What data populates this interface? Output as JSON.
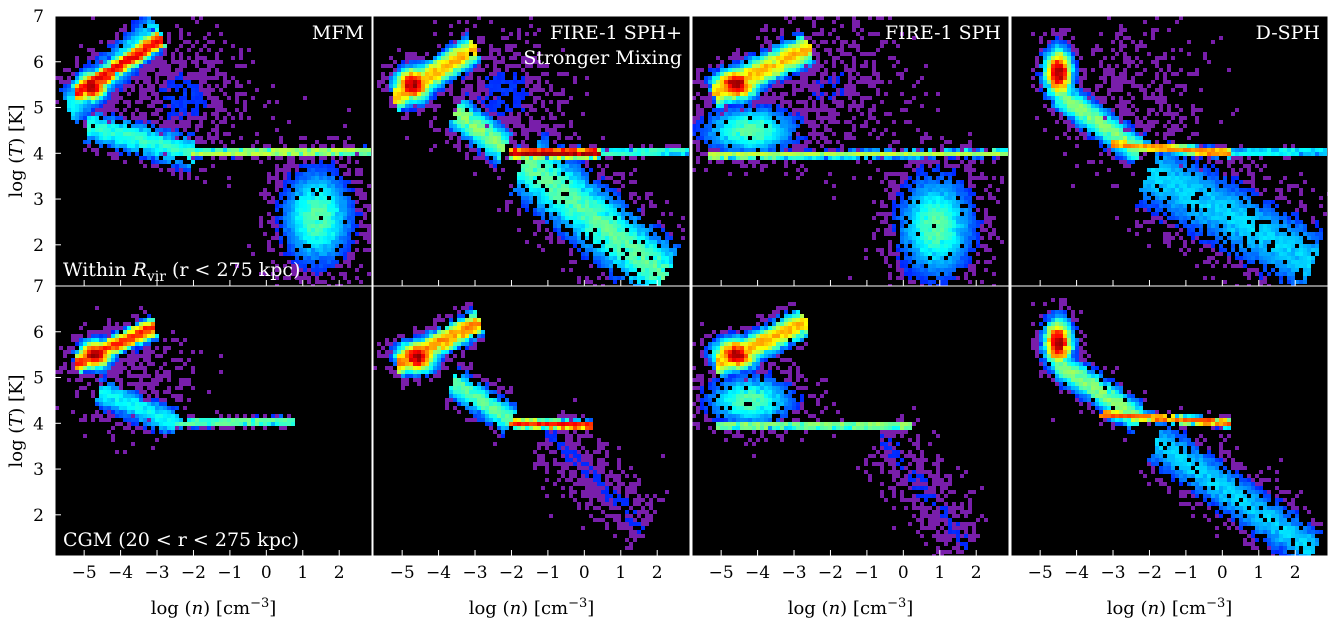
{
  "chart_data": {
    "type": "heatmap",
    "colormap": "jet",
    "background": "#000000",
    "panel_titles": [
      [
        "MFM"
      ],
      [
        "FIRE-1 SPH+",
        "Stronger Mixing"
      ],
      [
        "FIRE-1 SPH"
      ],
      [
        "D-SPH"
      ]
    ],
    "row_annotations": [
      "Within R_vir (r < 275 kpc)",
      "CGM (20 < r < 275 kpc)"
    ],
    "xlabel": "log (n) [cm^-3]",
    "ylabel": "log (T) [K]",
    "xlim": [
      -5.8,
      2.9
    ],
    "ylim": [
      1.1,
      7.0
    ],
    "xticks": [
      "−5",
      "−4",
      "−3",
      "−2",
      "−1",
      "0",
      "1",
      "2"
    ],
    "xtick_values": [
      -5,
      -4,
      -3,
      -2,
      -1,
      0,
      1,
      2
    ],
    "yticks_top": [
      "7",
      "6",
      "5",
      "4",
      "3",
      "2"
    ],
    "yticks_bottom": [
      "7",
      "6",
      "5",
      "4",
      "3",
      "2"
    ],
    "ytick_values": [
      7,
      6,
      5,
      4,
      3,
      2
    ],
    "panels": [
      {
        "row": 0,
        "col": 0,
        "components": [
          {
            "shape": "blob",
            "x": -4.8,
            "y": 5.45,
            "sx": 0.28,
            "sy": 0.2,
            "peak": 1.0,
            "n": 650
          },
          {
            "shape": "ridge",
            "x1": -5.2,
            "y1": 5.3,
            "x2": -2.9,
            "y2": 6.5,
            "width": 0.14,
            "peak": 0.9,
            "n": 900
          },
          {
            "shape": "ridge",
            "x1": -5.4,
            "y1": 5.0,
            "x2": -3.0,
            "y2": 6.7,
            "width": 0.3,
            "peak": 0.35,
            "n": 900
          },
          {
            "shape": "ridge",
            "x1": -4.9,
            "y1": 4.6,
            "x2": -2.0,
            "y2": 4.0,
            "width": 0.25,
            "peak": 0.4,
            "n": 500
          },
          {
            "shape": "ridge",
            "x1": -2.0,
            "y1": 4.0,
            "x2": 2.8,
            "y2": 4.05,
            "width": 0.04,
            "peak": 0.55,
            "n": 700
          },
          {
            "shape": "blob",
            "x": 1.4,
            "y": 2.6,
            "sx": 0.65,
            "sy": 0.7,
            "peak": 0.45,
            "n": 1400
          },
          {
            "shape": "blob",
            "x": -2.3,
            "y": 5.2,
            "sx": 0.9,
            "sy": 0.7,
            "peak": 0.12,
            "n": 600
          }
        ]
      },
      {
        "row": 0,
        "col": 1,
        "components": [
          {
            "shape": "blob",
            "x": -4.7,
            "y": 5.5,
            "sx": 0.32,
            "sy": 0.24,
            "peak": 1.0,
            "n": 700
          },
          {
            "shape": "ridge",
            "x1": -5.2,
            "y1": 5.2,
            "x2": -3.0,
            "y2": 6.3,
            "width": 0.2,
            "peak": 0.7,
            "n": 900
          },
          {
            "shape": "ridge",
            "x1": -3.5,
            "y1": 4.9,
            "x2": -2.2,
            "y2": 4.1,
            "width": 0.25,
            "peak": 0.5,
            "n": 500
          },
          {
            "shape": "ridge",
            "x1": -2.0,
            "y1": 4.0,
            "x2": 0.4,
            "y2": 4.0,
            "width": 0.06,
            "peak": 1.0,
            "n": 700
          },
          {
            "shape": "ridge",
            "x1": 0.4,
            "y1": 4.0,
            "x2": 2.8,
            "y2": 4.05,
            "width": 0.04,
            "peak": 0.4,
            "n": 400
          },
          {
            "shape": "ridge",
            "x1": -1.6,
            "y1": 3.8,
            "x2": 2.2,
            "y2": 1.3,
            "width": 0.5,
            "peak": 0.45,
            "n": 1600
          },
          {
            "shape": "blob",
            "x": -2.2,
            "y": 5.3,
            "sx": 0.9,
            "sy": 0.7,
            "peak": 0.12,
            "n": 500
          }
        ]
      },
      {
        "row": 0,
        "col": 2,
        "components": [
          {
            "shape": "blob",
            "x": -4.6,
            "y": 5.5,
            "sx": 0.4,
            "sy": 0.22,
            "peak": 1.0,
            "n": 700
          },
          {
            "shape": "ridge",
            "x1": -5.2,
            "y1": 5.3,
            "x2": -2.6,
            "y2": 6.3,
            "width": 0.22,
            "peak": 0.7,
            "n": 900
          },
          {
            "shape": "blob",
            "x": -4.2,
            "y": 4.5,
            "sx": 0.9,
            "sy": 0.35,
            "peak": 0.45,
            "n": 900
          },
          {
            "shape": "ridge",
            "x1": -5.3,
            "y1": 3.95,
            "x2": 2.8,
            "y2": 4.0,
            "width": 0.04,
            "peak": 0.55,
            "n": 900
          },
          {
            "shape": "blob",
            "x": 0.9,
            "y": 2.4,
            "sx": 0.7,
            "sy": 0.75,
            "peak": 0.45,
            "n": 1500
          },
          {
            "shape": "blob",
            "x": -2.0,
            "y": 5.5,
            "sx": 1.0,
            "sy": 0.8,
            "peak": 0.1,
            "n": 500
          }
        ]
      },
      {
        "row": 0,
        "col": 3,
        "components": [
          {
            "shape": "blob",
            "x": -4.5,
            "y": 5.75,
            "sx": 0.25,
            "sy": 0.35,
            "peak": 1.0,
            "n": 700
          },
          {
            "shape": "ridge",
            "x1": -4.5,
            "y1": 5.3,
            "x2": -2.3,
            "y2": 4.05,
            "width": 0.22,
            "peak": 0.5,
            "n": 700
          },
          {
            "shape": "ridge",
            "x1": -3.0,
            "y1": 4.2,
            "x2": 0.2,
            "y2": 4.0,
            "width": 0.05,
            "peak": 0.75,
            "n": 600
          },
          {
            "shape": "ridge",
            "x1": 0.2,
            "y1": 4.0,
            "x2": 2.8,
            "y2": 4.05,
            "width": 0.04,
            "peak": 0.35,
            "n": 300
          },
          {
            "shape": "ridge",
            "x1": -2.0,
            "y1": 3.6,
            "x2": 2.5,
            "y2": 1.6,
            "width": 0.55,
            "peak": 0.3,
            "n": 1500
          },
          {
            "shape": "blob",
            "x": -2.5,
            "y": 5.2,
            "sx": 1.0,
            "sy": 0.8,
            "peak": 0.08,
            "n": 400
          }
        ]
      },
      {
        "row": 1,
        "col": 0,
        "components": [
          {
            "shape": "blob",
            "x": -4.7,
            "y": 5.5,
            "sx": 0.3,
            "sy": 0.2,
            "peak": 1.0,
            "n": 650
          },
          {
            "shape": "ridge",
            "x1": -5.2,
            "y1": 5.3,
            "x2": -3.1,
            "y2": 6.1,
            "width": 0.14,
            "peak": 0.85,
            "n": 800
          },
          {
            "shape": "ridge",
            "x1": -4.6,
            "y1": 4.7,
            "x2": -2.5,
            "y2": 4.0,
            "width": 0.22,
            "peak": 0.35,
            "n": 400
          },
          {
            "shape": "ridge",
            "x1": -2.5,
            "y1": 4.0,
            "x2": 0.7,
            "y2": 4.05,
            "width": 0.05,
            "peak": 0.45,
            "n": 400
          },
          {
            "shape": "blob",
            "x": -3.5,
            "y": 5.0,
            "sx": 0.9,
            "sy": 0.6,
            "peak": 0.08,
            "n": 300
          }
        ]
      },
      {
        "row": 1,
        "col": 1,
        "components": [
          {
            "shape": "blob",
            "x": -4.6,
            "y": 5.45,
            "sx": 0.35,
            "sy": 0.22,
            "peak": 1.0,
            "n": 650
          },
          {
            "shape": "ridge",
            "x1": -5.1,
            "y1": 5.3,
            "x2": -2.9,
            "y2": 6.2,
            "width": 0.18,
            "peak": 0.75,
            "n": 800
          },
          {
            "shape": "ridge",
            "x1": -3.6,
            "y1": 4.9,
            "x2": -2.0,
            "y2": 4.05,
            "width": 0.22,
            "peak": 0.45,
            "n": 450
          },
          {
            "shape": "ridge",
            "x1": -2.0,
            "y1": 4.0,
            "x2": 0.2,
            "y2": 3.95,
            "width": 0.05,
            "peak": 0.9,
            "n": 450
          },
          {
            "shape": "ridge",
            "x1": -1.0,
            "y1": 3.8,
            "x2": 1.7,
            "y2": 1.7,
            "width": 0.4,
            "peak": 0.1,
            "n": 500
          }
        ]
      },
      {
        "row": 1,
        "col": 2,
        "components": [
          {
            "shape": "blob",
            "x": -4.6,
            "y": 5.5,
            "sx": 0.4,
            "sy": 0.22,
            "peak": 1.0,
            "n": 650
          },
          {
            "shape": "ridge",
            "x1": -5.1,
            "y1": 5.3,
            "x2": -2.7,
            "y2": 6.2,
            "width": 0.2,
            "peak": 0.7,
            "n": 800
          },
          {
            "shape": "blob",
            "x": -4.2,
            "y": 4.5,
            "sx": 0.8,
            "sy": 0.35,
            "peak": 0.45,
            "n": 700
          },
          {
            "shape": "ridge",
            "x1": -5.1,
            "y1": 3.95,
            "x2": 0.2,
            "y2": 3.95,
            "width": 0.04,
            "peak": 0.5,
            "n": 500
          },
          {
            "shape": "ridge",
            "x1": -0.6,
            "y1": 3.7,
            "x2": 1.8,
            "y2": 1.3,
            "width": 0.4,
            "peak": 0.1,
            "n": 500
          }
        ]
      },
      {
        "row": 1,
        "col": 3,
        "components": [
          {
            "shape": "blob",
            "x": -4.5,
            "y": 5.75,
            "sx": 0.25,
            "sy": 0.35,
            "peak": 1.0,
            "n": 650
          },
          {
            "shape": "ridge",
            "x1": -4.5,
            "y1": 5.3,
            "x2": -2.3,
            "y2": 4.1,
            "width": 0.22,
            "peak": 0.5,
            "n": 600
          },
          {
            "shape": "ridge",
            "x1": -3.3,
            "y1": 4.2,
            "x2": 0.2,
            "y2": 4.0,
            "width": 0.05,
            "peak": 0.8,
            "n": 550
          },
          {
            "shape": "ridge",
            "x1": -1.8,
            "y1": 3.6,
            "x2": 2.5,
            "y2": 1.2,
            "width": 0.35,
            "peak": 0.3,
            "n": 1100
          }
        ]
      }
    ]
  },
  "annotations": {
    "top": {
      "label": "Within",
      "symbol": "R",
      "sub": "vir",
      "rest": " (r < 275 kpc)"
    },
    "bottom": {
      "label": "CGM (20 < r < 275 kpc)"
    }
  }
}
